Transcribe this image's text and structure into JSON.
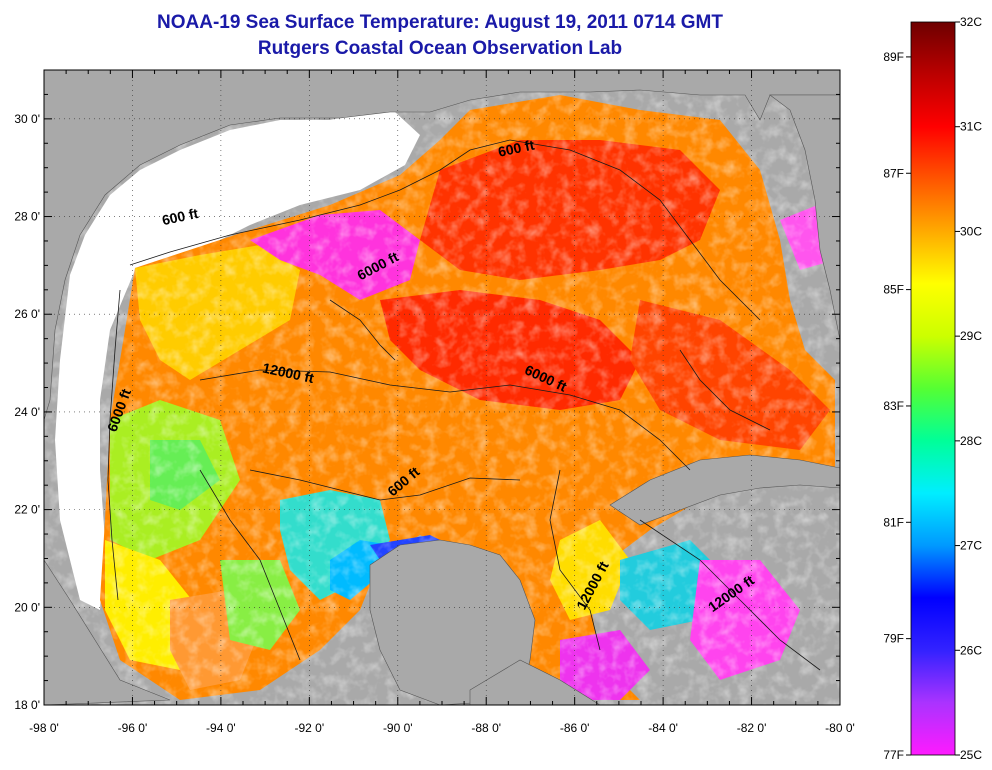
{
  "title": "NOAA-19 Sea Surface Temperature:  August 19, 2011 0714 GMT",
  "subtitle": "Rutgers Coastal Ocean Observation Lab",
  "map": {
    "lon_ticks": [
      "-98 0'",
      "-96 0'",
      "-94 0'",
      "-92 0'",
      "-90 0'",
      "-88 0'",
      "-86 0'",
      "-84 0'",
      "-82 0'",
      "-80 0'"
    ],
    "lat_ticks": [
      "30 0'",
      "28 0'",
      "26 0'",
      "24 0'",
      "22 0'",
      "20 0'",
      "18 0'"
    ],
    "lon_range": [
      -98,
      -80
    ],
    "lat_range": [
      18,
      31
    ],
    "grid": "dotted",
    "colors": {
      "land": "#a9a9a9",
      "cloud": "#ffffff",
      "shelf": "#ffffff"
    },
    "contour_labels": [
      {
        "text": "600 ft",
        "lon": -94.9,
        "lat": 27.9,
        "angle": -12
      },
      {
        "text": "600 ft",
        "lon": -87.3,
        "lat": 29.3,
        "angle": -12
      },
      {
        "text": "6000 ft",
        "lon": -90.4,
        "lat": 26.9,
        "angle": -28
      },
      {
        "text": "12000 ft",
        "lon": -92.5,
        "lat": 24.7,
        "angle": 12
      },
      {
        "text": "6000 ft",
        "lon": -86.7,
        "lat": 24.6,
        "angle": 25
      },
      {
        "text": "6000 ft",
        "lon": -96.2,
        "lat": 24.0,
        "angle": -70
      },
      {
        "text": "600 ft",
        "lon": -89.8,
        "lat": 22.5,
        "angle": -40
      },
      {
        "text": "12000 ft",
        "lon": -85.5,
        "lat": 20.4,
        "angle": -62
      },
      {
        "text": "12000 ft",
        "lon": -82.4,
        "lat": 20.2,
        "angle": -35
      }
    ]
  },
  "colorbar": {
    "celsius": [
      "32C",
      "31C",
      "30C",
      "29C",
      "28C",
      "27C",
      "26C",
      "25C"
    ],
    "fahrenheit": [
      "89F",
      "87F",
      "85F",
      "83F",
      "81F",
      "79F",
      "77F"
    ],
    "range_c": [
      25,
      32
    ],
    "stops": [
      "#ff1aff",
      "#aa33ff",
      "#3322ff",
      "#0000ff",
      "#0099ff",
      "#00eeff",
      "#00ff99",
      "#55ff33",
      "#ccff00",
      "#ffff00",
      "#ffaa00",
      "#ff5500",
      "#ff0000",
      "#bb0000",
      "#6e0000"
    ]
  }
}
